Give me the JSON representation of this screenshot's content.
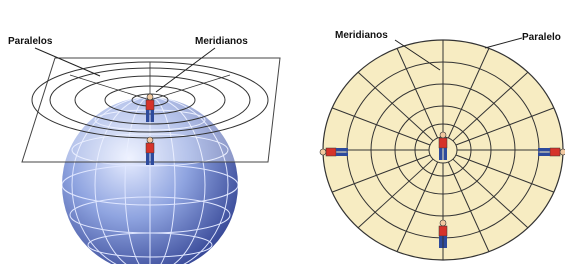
{
  "left": {
    "parallels_label": "Paralelos",
    "meridians_label": "Meridianos"
  },
  "right": {
    "meridians_label": "Meridianos",
    "parallel_label": "Paralelo"
  }
}
